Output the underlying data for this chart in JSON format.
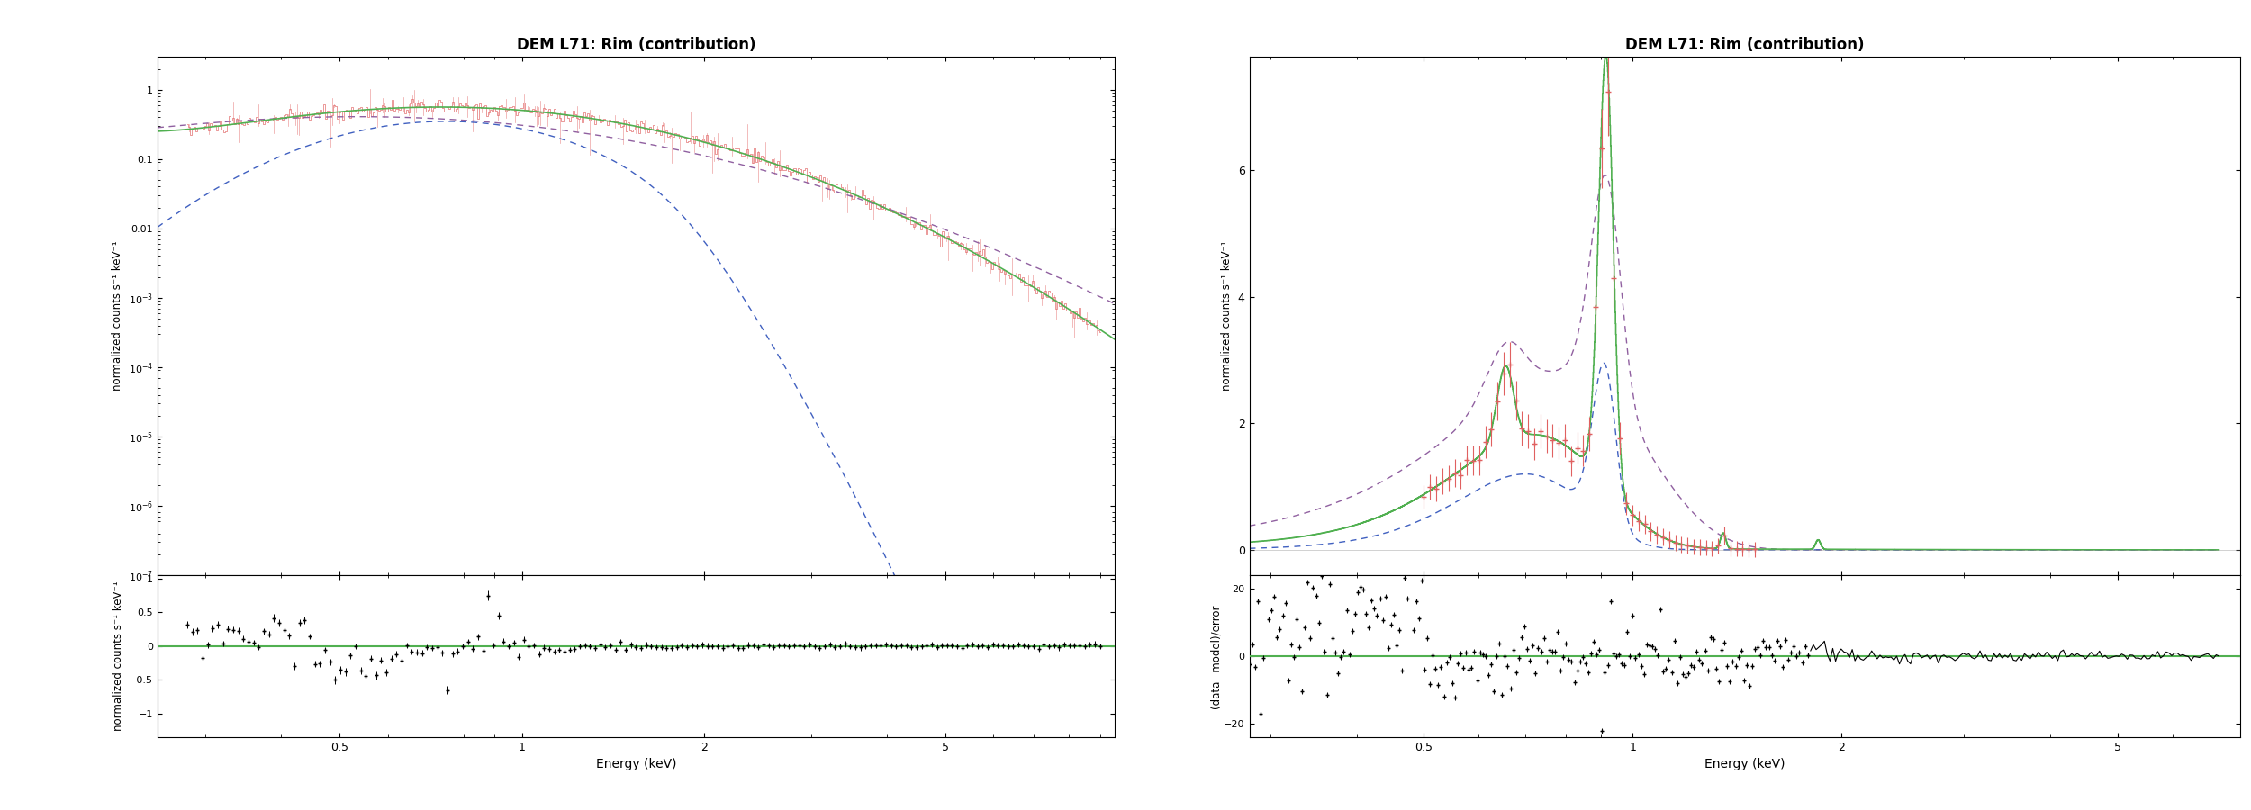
{
  "title": "DEM L71: Rim (contribution)",
  "left_xlabel": "Energy (keV)",
  "left_ylabel_top": "normalized counts s⁻¹ keV⁻¹",
  "left_ylabel_bottom": "normalized counts s⁻¹ keV⁻¹",
  "right_xlabel": "Energy (keV)",
  "right_ylabel_top": "normalized counts s⁻¹ keV⁻¹",
  "right_ylabel_bottom": "(data−model)/error",
  "colors": {
    "data_red": "#e06060",
    "fit_green": "#50b050",
    "comp1_purple": "#9060a0",
    "comp2_blue": "#4060c0",
    "black": "#000000",
    "zero_green": "#50b050"
  },
  "background": "#ffffff"
}
